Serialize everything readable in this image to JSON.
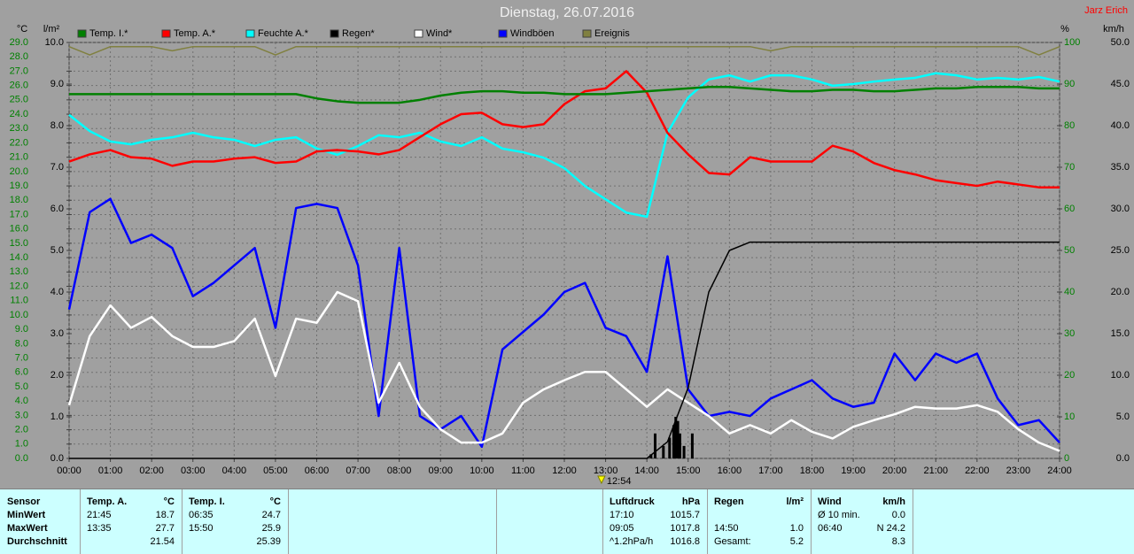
{
  "chart_data": {
    "type": "line",
    "title": "Dienstag, 26.07.2016",
    "author": "Jarz Erich",
    "annotation": "12:54",
    "annotation_x": 12.9,
    "grid": true,
    "x": [
      0,
      0.5,
      1,
      1.5,
      2,
      2.5,
      3,
      3.5,
      4,
      4.5,
      5,
      5.5,
      6,
      6.5,
      7,
      7.5,
      8,
      8.5,
      9,
      9.5,
      10,
      10.5,
      11,
      11.5,
      12,
      12.5,
      13,
      13.5,
      14,
      14.5,
      15,
      15.5,
      16,
      16.5,
      17,
      17.5,
      18,
      18.5,
      19,
      19.5,
      20,
      20.5,
      21,
      21.5,
      22,
      22.5,
      23,
      23.5,
      24
    ],
    "xlim": [
      0,
      24
    ],
    "xticks": [
      {
        "value": 0,
        "label": "00:00"
      },
      {
        "value": 1,
        "label": "01:00"
      },
      {
        "value": 2,
        "label": "02:00"
      },
      {
        "value": 3,
        "label": "03:00"
      },
      {
        "value": 4,
        "label": "04:00"
      },
      {
        "value": 5,
        "label": "05:00"
      },
      {
        "value": 6,
        "label": "06:00"
      },
      {
        "value": 7,
        "label": "07:00"
      },
      {
        "value": 8,
        "label": "08:00"
      },
      {
        "value": 9,
        "label": "09:00"
      },
      {
        "value": 10,
        "label": "10:00"
      },
      {
        "value": 11,
        "label": "11:00"
      },
      {
        "value": 12,
        "label": "12:00"
      },
      {
        "value": 13,
        "label": "13:00"
      },
      {
        "value": 14,
        "label": "14:00"
      },
      {
        "value": 15,
        "label": "15:00"
      },
      {
        "value": 16,
        "label": "16:00"
      },
      {
        "value": 17,
        "label": "17:00"
      },
      {
        "value": 18,
        "label": "18:00"
      },
      {
        "value": 19,
        "label": "19:00"
      },
      {
        "value": 20,
        "label": "20:00"
      },
      {
        "value": 21,
        "label": "21:00"
      },
      {
        "value": 22,
        "label": "22:00"
      },
      {
        "value": 23,
        "label": "23:00"
      },
      {
        "value": 24,
        "label": "24:00"
      }
    ],
    "axes": {
      "temp": {
        "unit": "°C",
        "side": "left",
        "lim": [
          0,
          29
        ],
        "ticks": [
          {
            "value": 0,
            "label": "0.0"
          },
          {
            "value": 1,
            "label": "1.0"
          },
          {
            "value": 2,
            "label": "2.0"
          },
          {
            "value": 3,
            "label": "3.0"
          },
          {
            "value": 4,
            "label": "4.0"
          },
          {
            "value": 5,
            "label": "5.0"
          },
          {
            "value": 6,
            "label": "6.0"
          },
          {
            "value": 7,
            "label": "7.0"
          },
          {
            "value": 8,
            "label": "8.0"
          },
          {
            "value": 9,
            "label": "9.0"
          },
          {
            "value": 10,
            "label": "10.0"
          },
          {
            "value": 11,
            "label": "11.0"
          },
          {
            "value": 12,
            "label": "12.0"
          },
          {
            "value": 13,
            "label": "13.0"
          },
          {
            "value": 14,
            "label": "14.0"
          },
          {
            "value": 15,
            "label": "15.0"
          },
          {
            "value": 16,
            "label": "16.0"
          },
          {
            "value": 17,
            "label": "17.0"
          },
          {
            "value": 18,
            "label": "18.0"
          },
          {
            "value": 19,
            "label": "19.0"
          },
          {
            "value": 20,
            "label": "20.0"
          },
          {
            "value": 21,
            "label": "21.0"
          },
          {
            "value": 22,
            "label": "22.0"
          },
          {
            "value": 23,
            "label": "23.0"
          },
          {
            "value": 24,
            "label": "24.0"
          },
          {
            "value": 25,
            "label": "25.0"
          },
          {
            "value": 26,
            "label": "26.0"
          },
          {
            "value": 27,
            "label": "27.0"
          },
          {
            "value": 28,
            "label": "28.0"
          },
          {
            "value": 29,
            "label": "29.0"
          }
        ]
      },
      "rain": {
        "unit": "l/m²",
        "side": "left",
        "lim": [
          0,
          10
        ],
        "ticks": [
          {
            "value": 0,
            "label": "0.0"
          },
          {
            "value": 1,
            "label": "1.0"
          },
          {
            "value": 2,
            "label": "2.0"
          },
          {
            "value": 3,
            "label": "3.0"
          },
          {
            "value": 4,
            "label": "4.0"
          },
          {
            "value": 5,
            "label": "5.0"
          },
          {
            "value": 6,
            "label": "6.0"
          },
          {
            "value": 7,
            "label": "7.0"
          },
          {
            "value": 8,
            "label": "8.0"
          },
          {
            "value": 9,
            "label": "9.0"
          },
          {
            "value": 10,
            "label": "10.0"
          }
        ]
      },
      "hum": {
        "unit": "%",
        "side": "right",
        "lim": [
          0,
          100
        ],
        "ticks": [
          0,
          10,
          20,
          30,
          40,
          50,
          60,
          70,
          80,
          90,
          100
        ]
      },
      "wind": {
        "unit": "km/h",
        "side": "right",
        "lim": [
          0,
          50
        ],
        "ticks": [
          {
            "value": 0,
            "label": "0.0"
          },
          {
            "value": 5,
            "label": "5.0"
          },
          {
            "value": 10,
            "label": "10.0"
          },
          {
            "value": 15,
            "label": "15.0"
          },
          {
            "value": 20,
            "label": "20.0"
          },
          {
            "value": 25,
            "label": "25.0"
          },
          {
            "value": 30,
            "label": "30.0"
          },
          {
            "value": 35,
            "label": "35.0"
          },
          {
            "value": 40,
            "label": "40.0"
          },
          {
            "value": 45,
            "label": "45.0"
          },
          {
            "value": 50,
            "label": "50.0"
          }
        ]
      }
    },
    "series": [
      {
        "name": "Temp. I.*",
        "color": "#008000",
        "axis": "temp",
        "values": [
          25.4,
          25.4,
          25.4,
          25.4,
          25.4,
          25.4,
          25.4,
          25.4,
          25.4,
          25.4,
          25.4,
          25.4,
          25.1,
          24.9,
          24.8,
          24.8,
          24.8,
          25.0,
          25.3,
          25.5,
          25.6,
          25.6,
          25.5,
          25.5,
          25.4,
          25.4,
          25.4,
          25.5,
          25.6,
          25.7,
          25.8,
          25.9,
          25.9,
          25.8,
          25.7,
          25.6,
          25.6,
          25.7,
          25.7,
          25.6,
          25.6,
          25.7,
          25.8,
          25.8,
          25.9,
          25.9,
          25.9,
          25.8,
          25.8
        ]
      },
      {
        "name": "Temp. A.*",
        "color": "#ff0000",
        "axis": "temp",
        "values": [
          20.7,
          21.2,
          21.5,
          21.0,
          20.9,
          20.4,
          20.7,
          20.7,
          20.9,
          21.0,
          20.6,
          20.7,
          21.4,
          21.5,
          21.4,
          21.2,
          21.5,
          22.4,
          23.3,
          24.0,
          24.1,
          23.3,
          23.1,
          23.3,
          24.7,
          25.6,
          25.8,
          27.0,
          25.5,
          22.7,
          21.2,
          19.9,
          19.8,
          21.0,
          20.7,
          20.7,
          20.7,
          21.8,
          21.4,
          20.6,
          20.1,
          19.8,
          19.4,
          19.2,
          19.0,
          19.3,
          19.1,
          18.9,
          18.9
        ]
      },
      {
        "name": "Feuchte A.*",
        "color": "#00ffff",
        "axis": "hum",
        "values": [
          82.6,
          78.7,
          76.2,
          75.5,
          76.6,
          77.2,
          78.3,
          77.2,
          76.6,
          75.1,
          76.6,
          77.2,
          74.5,
          73.0,
          75.1,
          77.7,
          77.2,
          78.3,
          76.2,
          75.1,
          77.2,
          74.5,
          73.6,
          72.3,
          69.8,
          65.5,
          62.3,
          59.1,
          58.1,
          78.3,
          86.8,
          91.1,
          92.1,
          90.6,
          92.1,
          92.1,
          91.1,
          89.6,
          90.0,
          90.6,
          91.1,
          91.5,
          92.6,
          92.1,
          91.1,
          91.5,
          91.1,
          91.7,
          90.6
        ]
      },
      {
        "name": "Regen*",
        "color": "#000000",
        "axis": "rain",
        "values": [
          0,
          0,
          0,
          0,
          0,
          0,
          0,
          0,
          0,
          0,
          0,
          0,
          0,
          0,
          0,
          0,
          0,
          0,
          0,
          0,
          0,
          0,
          0,
          0,
          0,
          0,
          0,
          0,
          0,
          0.4,
          1.7,
          4.0,
          5.0,
          5.2,
          5.2,
          5.2,
          5.2,
          5.2,
          5.2,
          5.2,
          5.2,
          5.2,
          5.2,
          5.2,
          5.2,
          5.2,
          5.2,
          5.2,
          5.2
        ],
        "bar_x": [
          14.1,
          14.2,
          14.4,
          14.55,
          14.65,
          14.7,
          14.75,
          14.8,
          14.9,
          15.1
        ],
        "bar_values": [
          0.1,
          0.6,
          0.3,
          0.5,
          0.8,
          1.0,
          0.9,
          0.6,
          0.3,
          0.6
        ]
      },
      {
        "name": "Wind*",
        "color": "#ffffff",
        "axis": "wind",
        "values": [
          6.4,
          14.7,
          18.4,
          15.7,
          17.0,
          14.7,
          13.4,
          13.4,
          14.1,
          16.8,
          9.9,
          16.8,
          16.3,
          20.0,
          18.9,
          6.7,
          11.5,
          6.2,
          3.5,
          1.9,
          1.9,
          3.0,
          6.7,
          8.3,
          9.4,
          10.4,
          10.4,
          8.3,
          6.2,
          8.3,
          6.7,
          5.1,
          3.0,
          4.0,
          3.0,
          4.6,
          3.2,
          2.4,
          3.8,
          4.6,
          5.3,
          6.2,
          6.0,
          6.0,
          6.4,
          5.6,
          3.5,
          1.9,
          0.9
        ]
      },
      {
        "name": "Windböen",
        "color": "#0000ff",
        "axis": "wind",
        "values": [
          17.9,
          29.6,
          31.2,
          25.9,
          26.9,
          25.3,
          19.5,
          21.1,
          23.2,
          25.3,
          15.7,
          30.1,
          30.6,
          30.1,
          23.2,
          5.1,
          25.3,
          5.1,
          3.5,
          5.1,
          1.4,
          13.1,
          15.2,
          17.3,
          20.0,
          21.1,
          15.7,
          14.7,
          10.4,
          24.3,
          8.3,
          5.1,
          5.6,
          5.1,
          7.2,
          8.3,
          9.4,
          7.2,
          6.2,
          6.7,
          12.6,
          9.4,
          12.6,
          11.5,
          12.6,
          7.2,
          4.0,
          4.6,
          1.9
        ]
      },
      {
        "name": "Ereignis",
        "color": "#808040",
        "axis": "hum",
        "values": [
          99,
          97,
          99,
          99,
          99,
          98,
          99,
          99,
          99,
          99,
          97,
          99,
          99,
          99,
          99,
          99,
          99,
          99,
          99,
          99,
          99,
          99,
          99,
          99,
          99,
          99,
          99,
          99,
          99,
          99,
          99,
          99,
          99,
          99,
          98,
          99,
          99,
          99,
          99,
          99,
          99,
          99,
          99,
          99,
          99,
          99,
          99,
          97,
          99
        ]
      }
    ]
  },
  "table": {
    "header": "Sensor",
    "row_labels": [
      "MinWert",
      "MaxWert",
      "Durchschnitt"
    ],
    "groups": [
      {
        "title": "Temp. A.",
        "unit": "°C",
        "rows": [
          [
            "21:45",
            "18.7"
          ],
          [
            "13:35",
            "27.7"
          ],
          [
            null,
            "21.54"
          ]
        ]
      },
      {
        "title": "Temp. I.",
        "unit": "°C",
        "rows": [
          [
            "06:35",
            "24.7"
          ],
          [
            "15:50",
            "25.9"
          ],
          [
            null,
            "25.39"
          ]
        ]
      },
      {
        "title": "Luftdruck",
        "unit": "hPa",
        "rows": [
          [
            "17:10",
            "1015.7"
          ],
          [
            "09:05",
            "1017.8"
          ],
          [
            "^1.2hPa/h",
            "1016.8"
          ]
        ]
      },
      {
        "title": "Regen",
        "unit": "l/m²",
        "rows": [
          [
            null,
            null
          ],
          [
            "14:50",
            "1.0"
          ],
          [
            "Gesamt:",
            "5.2"
          ]
        ]
      },
      {
        "title": "Wind",
        "unit": "km/h",
        "rows": [
          [
            "Ø 10 min.",
            "0.0"
          ],
          [
            "06:40",
            "N 24.2"
          ],
          [
            null,
            "8.3"
          ]
        ]
      }
    ]
  }
}
